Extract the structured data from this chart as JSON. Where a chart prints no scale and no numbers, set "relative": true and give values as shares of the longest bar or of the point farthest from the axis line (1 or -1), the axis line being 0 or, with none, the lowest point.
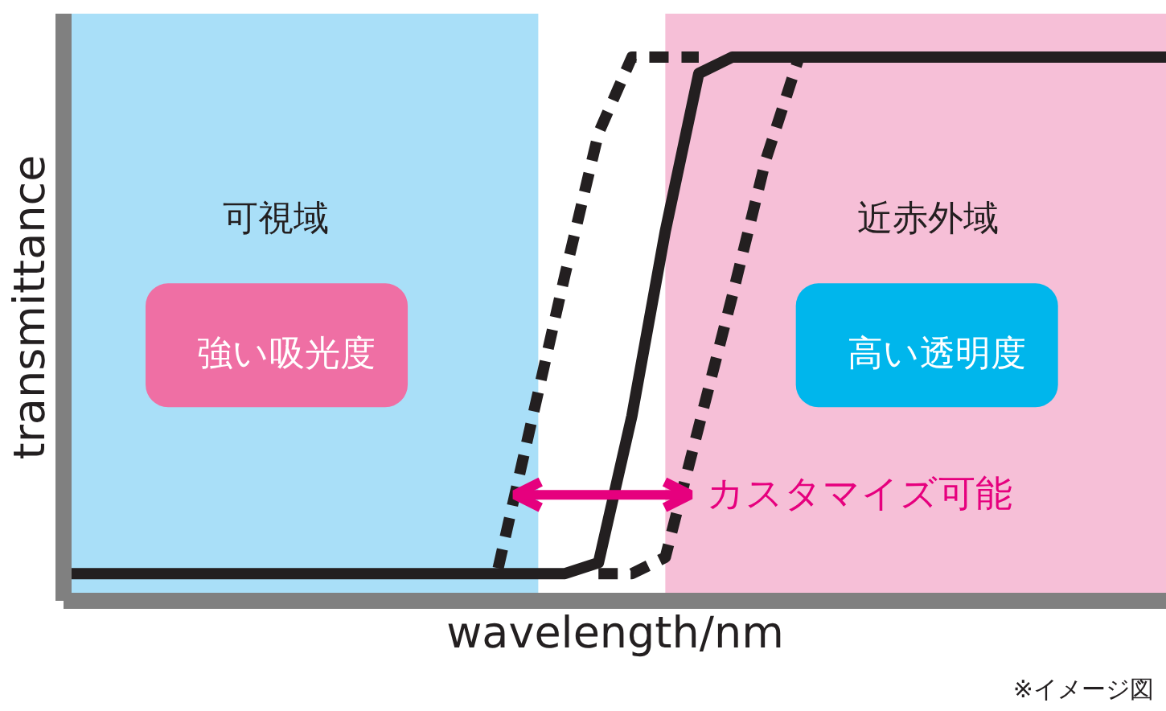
{
  "chart_data": {
    "type": "line",
    "relative": true,
    "xlabel": "wavelength/nm",
    "ylabel": "transmittance",
    "categories": [
      null,
      null,
      null,
      null,
      null,
      null,
      null,
      null,
      null,
      null,
      null,
      null,
      null,
      null,
      null,
      null,
      null,
      null,
      null,
      null,
      null,
      null,
      null,
      null,
      null,
      null,
      null,
      null,
      null,
      null,
      null,
      null,
      null,
      null
    ],
    "series": [
      {
        "color": "#231f20",
        "line_style": "dashed",
        "values": [
          null,
          null,
          null,
          null,
          null,
          null,
          null,
          null,
          null,
          null,
          null,
          null,
          null,
          0.06,
          0.33,
          0.6,
          0.86,
          1.0,
          1.0,
          1.0,
          null,
          null,
          null,
          null,
          null,
          null,
          null,
          null,
          null,
          null,
          null,
          null,
          null,
          null
        ]
      },
      {
        "color": "#231f20",
        "line_style": "dashed",
        "values": [
          null,
          null,
          null,
          null,
          null,
          null,
          null,
          null,
          null,
          null,
          null,
          null,
          null,
          null,
          null,
          null,
          0.05,
          0.05,
          0.08,
          0.32,
          0.56,
          0.81,
          1.0,
          null,
          null,
          null,
          null,
          null,
          null,
          null,
          null,
          null,
          null,
          null
        ]
      },
      {
        "color": "#231f20",
        "line_style": "solid",
        "values": [
          0.05,
          0.05,
          0.05,
          0.05,
          0.05,
          0.05,
          0.05,
          0.05,
          0.05,
          0.05,
          0.05,
          0.05,
          0.05,
          0.05,
          0.05,
          0.05,
          0.07,
          0.34,
          0.68,
          0.97,
          1.0,
          1.0,
          1.0,
          1.0,
          1.0,
          1.0,
          1.0,
          1.0,
          1.0,
          1.0,
          1.0,
          1.0,
          1.0,
          1.0
        ]
      }
    ],
    "annotations": [
      "可視域",
      "強い吸光度",
      "近赤外域",
      "高い透明度",
      "カスタマイズ可能",
      "※イメージ図"
    ]
  }
}
